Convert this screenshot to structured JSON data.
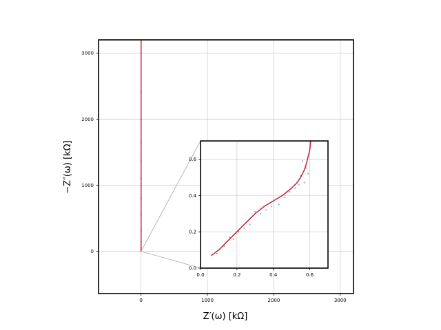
{
  "chart_data": [
    {
      "type": "line",
      "role": "main",
      "xlabel": "Z′(ω) [kΩ]",
      "ylabel": "−Z″(ω) [kΩ]",
      "xlim": [
        -640,
        3200
      ],
      "ylim": [
        -640,
        3200
      ],
      "xticks": [
        0,
        1000,
        2000,
        3000
      ],
      "yticks": [
        0,
        1000,
        2000,
        3000
      ],
      "x_tick_labels": [
        "0",
        "1000",
        "2000",
        "3000"
      ],
      "y_tick_labels": [
        "0",
        "1000",
        "2000",
        "3000"
      ],
      "grid": true,
      "series": [
        {
          "style": "scatter",
          "color": "#a0a0a0",
          "x": [
            0.05,
            0.1,
            0.15,
            0.2,
            0.3,
            0.4,
            0.5,
            0.55,
            0.58,
            0.6,
            0.6,
            0.61,
            0.62,
            0.63,
            0.64,
            0.65,
            0.66,
            0.67,
            0.68,
            0.69,
            0.7
          ],
          "y": [
            0.06,
            0.1,
            0.17,
            0.2,
            0.3,
            0.33,
            0.45,
            0.55,
            1.5,
            5,
            20,
            60,
            150,
            320,
            560,
            800,
            1100,
            1380,
            1650,
            2000,
            2400
          ]
        },
        {
          "style": "line",
          "color": "#4a6fb0",
          "x": [
            0.05,
            0.2,
            0.4,
            0.55,
            0.6,
            0.62,
            0.64,
            0.66,
            0.68,
            0.7
          ],
          "y": [
            0.06,
            0.2,
            0.36,
            0.5,
            0.7,
            100,
            600,
            1500,
            2500,
            3200
          ]
        },
        {
          "style": "line",
          "color": "#cc1f2f",
          "x": [
            0.05,
            0.2,
            0.4,
            0.55,
            0.6,
            0.62,
            0.64,
            0.66,
            0.68,
            0.7
          ],
          "y": [
            0.06,
            0.2,
            0.36,
            0.5,
            0.7,
            100,
            600,
            1500,
            2500,
            3200
          ]
        }
      ]
    },
    {
      "type": "line",
      "role": "inset",
      "xlim": [
        0,
        0.7
      ],
      "ylim": [
        0,
        0.7
      ],
      "xticks": [
        0,
        0.2,
        0.4,
        0.6
      ],
      "yticks": [
        0,
        0.2,
        0.4,
        0.6
      ],
      "x_tick_labels": [
        "0.0",
        "0.2",
        "0.4",
        "0.6"
      ],
      "y_tick_labels": [
        "0.0",
        "0.2",
        "0.4",
        "0.6"
      ],
      "grid": true,
      "series": [
        {
          "style": "scatter",
          "color": "#8fb0c8",
          "x": [
            0.06,
            0.09,
            0.13,
            0.16,
            0.18,
            0.21,
            0.24,
            0.27,
            0.3,
            0.33,
            0.36,
            0.39,
            0.43,
            0.46,
            0.49,
            0.52,
            0.54,
            0.55,
            0.56,
            0.57,
            0.58,
            0.59,
            0.6
          ],
          "y": [
            0.07,
            0.08,
            0.12,
            0.17,
            0.16,
            0.2,
            0.22,
            0.24,
            0.31,
            0.3,
            0.32,
            0.34,
            0.35,
            0.39,
            0.42,
            0.44,
            0.46,
            0.51,
            0.59,
            0.47,
            0.55,
            0.52,
            0.66
          ]
        },
        {
          "style": "line",
          "color": "#4a6fb0",
          "x": [
            0.06,
            0.1,
            0.15,
            0.2,
            0.25,
            0.3,
            0.35,
            0.4,
            0.45,
            0.5,
            0.53,
            0.55,
            0.57,
            0.58,
            0.59,
            0.6,
            0.605
          ],
          "y": [
            0.07,
            0.1,
            0.15,
            0.2,
            0.25,
            0.3,
            0.34,
            0.37,
            0.4,
            0.44,
            0.47,
            0.5,
            0.54,
            0.57,
            0.61,
            0.65,
            0.7
          ]
        },
        {
          "style": "line",
          "color": "#cc1f2f",
          "x": [
            0.06,
            0.1,
            0.15,
            0.2,
            0.25,
            0.3,
            0.35,
            0.4,
            0.45,
            0.5,
            0.53,
            0.55,
            0.57,
            0.58,
            0.59,
            0.6,
            0.605
          ],
          "y": [
            0.07,
            0.1,
            0.15,
            0.2,
            0.25,
            0.3,
            0.34,
            0.37,
            0.4,
            0.44,
            0.47,
            0.5,
            0.54,
            0.57,
            0.61,
            0.65,
            0.7
          ]
        }
      ]
    }
  ]
}
